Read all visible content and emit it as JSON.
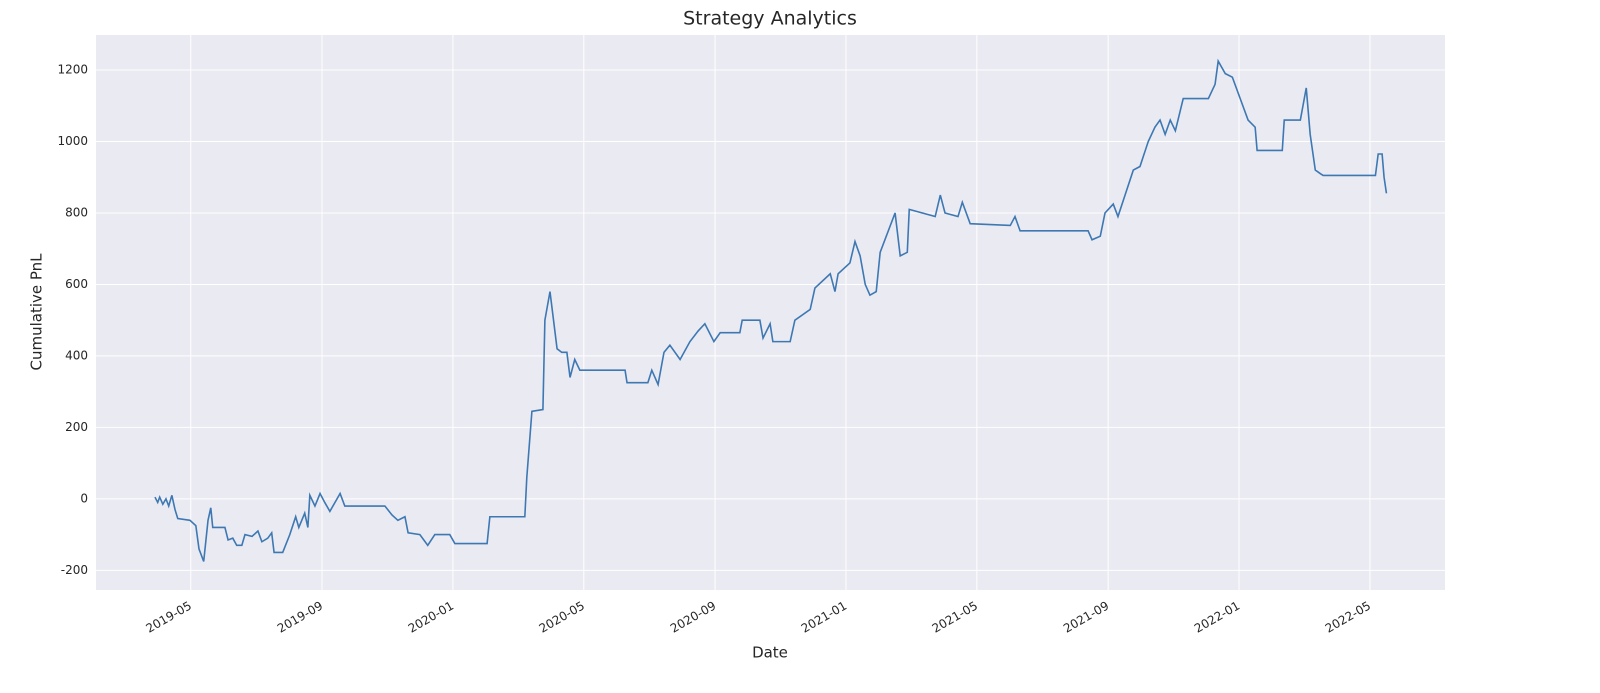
{
  "chart_data": {
    "type": "line",
    "title": "Strategy Analytics",
    "xlabel": "Date",
    "ylabel": "Cumulative PnL",
    "x": [
      2019.242,
      2019.249,
      2019.254,
      2019.262,
      2019.27,
      2019.277,
      2019.285,
      2019.293,
      2019.3,
      2019.331,
      2019.346,
      2019.354,
      2019.366,
      2019.377,
      2019.384,
      2019.389,
      2019.42,
      2019.428,
      2019.44,
      2019.45,
      2019.463,
      2019.471,
      2019.489,
      2019.504,
      2019.514,
      2019.529,
      2019.539,
      2019.545,
      2019.567,
      2019.585,
      2019.6,
      2019.608,
      2019.623,
      2019.631,
      2019.636,
      2019.649,
      2019.662,
      2019.674,
      2019.687,
      2019.713,
      2019.725,
      2019.827,
      2019.845,
      2019.86,
      2019.878,
      2019.886,
      2019.916,
      2019.936,
      2019.954,
      2019.992,
      2020.005,
      2020.087,
      2020.094,
      2020.183,
      2020.188,
      2020.201,
      2020.229,
      2020.234,
      2020.247,
      2020.265,
      2020.277,
      2020.29,
      2020.298,
      2020.31,
      2020.323,
      2020.438,
      2020.443,
      2020.496,
      2020.506,
      2020.522,
      2020.537,
      2020.552,
      2020.578,
      2020.603,
      2020.624,
      2020.641,
      2020.664,
      2020.68,
      2020.73,
      2020.736,
      2020.781,
      2020.789,
      2020.807,
      2020.814,
      2020.858,
      2020.87,
      2020.909,
      2020.921,
      2020.96,
      2020.972,
      2020.98,
      2021.01,
      2021.023,
      2021.036,
      2021.049,
      2021.061,
      2021.077,
      2021.087,
      2021.125,
      2021.138,
      2021.156,
      2021.161,
      2021.227,
      2021.24,
      2021.252,
      2021.285,
      2021.296,
      2021.316,
      2021.418,
      2021.43,
      2021.443,
      2021.616,
      2021.626,
      2021.647,
      2021.659,
      2021.68,
      2021.692,
      2021.71,
      2021.731,
      2021.748,
      2021.769,
      2021.786,
      2021.799,
      2021.812,
      2021.825,
      2021.838,
      2021.858,
      2021.922,
      2021.939,
      2021.947,
      2021.965,
      2021.983,
      2022.003,
      2022.023,
      2022.041,
      2022.046,
      2022.11,
      2022.115,
      2022.156,
      2022.171,
      2022.181,
      2022.194,
      2022.207,
      2022.214,
      2022.347,
      2022.354,
      2022.364,
      2022.369,
      2022.375
    ],
    "series": [
      {
        "name": "Cumulative PnL",
        "color": "#3d78b3",
        "values": [
          5,
          -10,
          5,
          -15,
          0,
          -20,
          10,
          -30,
          -55,
          -60,
          -75,
          -140,
          -175,
          -60,
          -25,
          -80,
          -80,
          -115,
          -110,
          -130,
          -130,
          -100,
          -105,
          -90,
          -120,
          -110,
          -95,
          -150,
          -150,
          -100,
          -50,
          -80,
          -40,
          -80,
          10,
          -20,
          15,
          -10,
          -35,
          15,
          -20,
          -20,
          -45,
          -60,
          -50,
          -95,
          -100,
          -130,
          -100,
          -100,
          -125,
          -125,
          -50,
          -50,
          60,
          245,
          250,
          500,
          580,
          420,
          410,
          410,
          340,
          390,
          360,
          360,
          325,
          325,
          360,
          320,
          410,
          430,
          390,
          440,
          470,
          490,
          440,
          465,
          465,
          500,
          500,
          450,
          490,
          440,
          440,
          500,
          530,
          590,
          630,
          580,
          630,
          660,
          720,
          680,
          600,
          570,
          580,
          690,
          800,
          680,
          690,
          810,
          790,
          850,
          800,
          790,
          830,
          770,
          765,
          790,
          750,
          750,
          725,
          735,
          800,
          825,
          790,
          850,
          920,
          930,
          1000,
          1040,
          1060,
          1020,
          1060,
          1030,
          1120,
          1120,
          1160,
          1225,
          1190,
          1180,
          1120,
          1060,
          1040,
          975,
          975,
          1060,
          1060,
          1150,
          1020,
          920,
          910,
          905,
          905,
          965,
          965,
          900,
          855
        ]
      }
    ],
    "xlim": [
      2019.092,
      2022.524
    ],
    "xticks": [
      {
        "value": 2019.333,
        "label": "2019-05"
      },
      {
        "value": 2019.667,
        "label": "2019-09"
      },
      {
        "value": 2020.0,
        "label": "2020-01"
      },
      {
        "value": 2020.333,
        "label": "2020-05"
      },
      {
        "value": 2020.667,
        "label": "2020-09"
      },
      {
        "value": 2021.0,
        "label": "2021-01"
      },
      {
        "value": 2021.333,
        "label": "2021-05"
      },
      {
        "value": 2021.667,
        "label": "2021-09"
      },
      {
        "value": 2022.0,
        "label": "2022-01"
      },
      {
        "value": 2022.333,
        "label": "2022-05"
      }
    ],
    "ylim": [
      -255,
      1298
    ],
    "yticks": [
      -200,
      0,
      200,
      400,
      600,
      800,
      1000,
      1200
    ],
    "grid": true
  }
}
